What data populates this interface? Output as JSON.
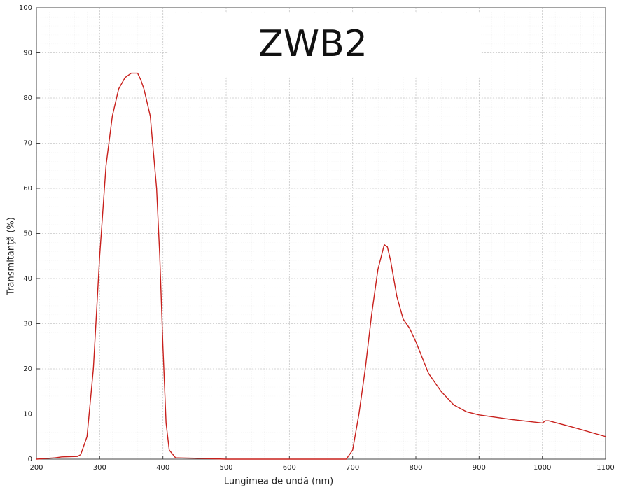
{
  "chart_data": {
    "type": "line",
    "title": "ZWB2",
    "x_label": "Lungimea de undă (nm)",
    "y_label": "Transmitanță (%)",
    "x": [
      200,
      230,
      240,
      265,
      270,
      280,
      290,
      300,
      310,
      320,
      330,
      340,
      350,
      360,
      365,
      370,
      380,
      390,
      395,
      400,
      405,
      410,
      420,
      450,
      500,
      600,
      690,
      700,
      710,
      720,
      730,
      740,
      750,
      755,
      760,
      770,
      780,
      790,
      800,
      820,
      840,
      860,
      880,
      900,
      950,
      1000,
      1005,
      1010,
      1050,
      1100
    ],
    "values": [
      0,
      0.3,
      0.5,
      0.6,
      1,
      5,
      20,
      45,
      65,
      76,
      82,
      84.5,
      85.5,
      85.5,
      84,
      82,
      76,
      60,
      45,
      25,
      8,
      2,
      0.3,
      0.2,
      0,
      0,
      0,
      2,
      10,
      20,
      32,
      42,
      47.5,
      47,
      44,
      36,
      31,
      29,
      26,
      19,
      15,
      12,
      10.5,
      9.8,
      8.8,
      8,
      8.5,
      8.5,
      7,
      5
    ],
    "color": "#c8201c",
    "xlim": [
      200,
      1100
    ],
    "xticks": [
      200,
      300,
      400,
      500,
      600,
      700,
      800,
      900,
      1000,
      1100
    ],
    "ylim": [
      0,
      100
    ],
    "yticks": [
      0,
      10,
      20,
      30,
      40,
      50,
      60,
      70,
      80,
      90,
      100
    ],
    "grid": true
  }
}
